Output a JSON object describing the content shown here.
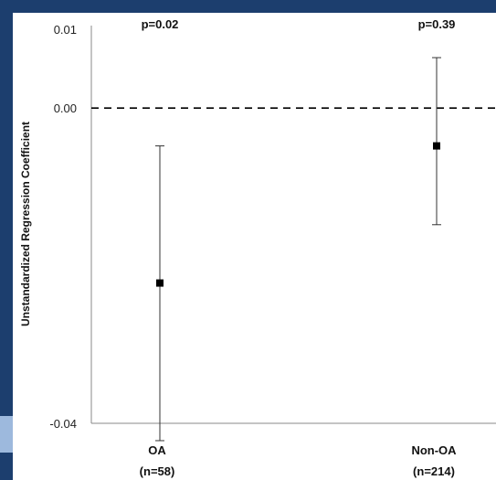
{
  "chart_data": {
    "type": "scatter",
    "ylabel": "Unstandardized Regression Coefficient",
    "ylim": [
      -0.04,
      0.01
    ],
    "yticks": [
      "0.01",
      "0.00",
      "-0.04"
    ],
    "reference_line": 0.0,
    "points": [
      {
        "category": "OA",
        "n_label": "(n=58)",
        "estimate": -0.0222,
        "lower": -0.0422,
        "upper": -0.0048,
        "p_label": "p=0.02"
      },
      {
        "category": "Non-OA",
        "n_label": "(n=214)",
        "estimate": -0.0048,
        "lower": -0.0148,
        "upper": 0.0064,
        "p_label": "p=0.39"
      }
    ]
  },
  "colors": {
    "frame": "#2e63a6",
    "navy": "#1c3e6e",
    "marker": "#000000",
    "plot_background": "#ffffff"
  }
}
